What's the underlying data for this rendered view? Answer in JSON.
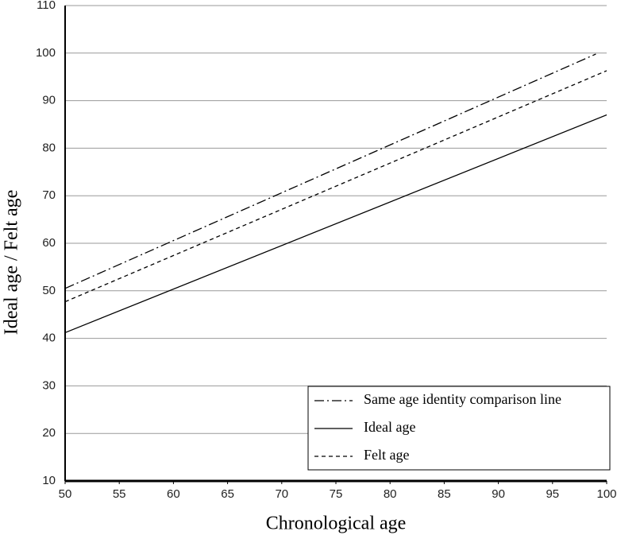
{
  "chart_data": {
    "type": "line",
    "x_label": "Chronological age",
    "y_label": "Ideal age / Felt age",
    "series": [
      {
        "name": "Same age identity comparison line",
        "color": "#000000",
        "dash": "dashdot",
        "x": [
          50,
          99
        ],
        "values": [
          50.5,
          99.8
        ]
      },
      {
        "name": "Ideal age",
        "color": "#000000",
        "dash": "solid",
        "x": [
          50,
          100
        ],
        "values": [
          41.2,
          87
        ]
      },
      {
        "name": "Felt age",
        "color": "#000000",
        "dash": "dashed",
        "x": [
          50,
          100
        ],
        "values": [
          47.7,
          96.3
        ]
      }
    ],
    "xlim": [
      50,
      100
    ],
    "xticks": [
      50,
      55,
      60,
      65,
      70,
      75,
      80,
      85,
      90,
      95,
      100
    ],
    "ylim": [
      10,
      110
    ],
    "yticks": [
      10,
      20,
      30,
      40,
      50,
      60,
      70,
      80,
      90,
      100,
      110
    ],
    "grid": true,
    "legend": "lower right"
  }
}
